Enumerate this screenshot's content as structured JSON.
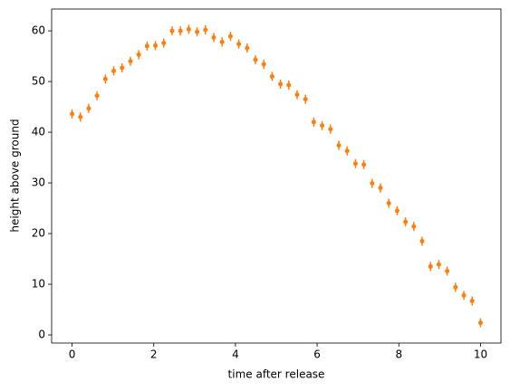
{
  "chart_data": {
    "type": "errorbar",
    "xlabel": "time after release",
    "ylabel": "height above ground",
    "x": [
      0,
      0.204,
      0.408,
      0.612,
      0.816,
      1.02,
      1.224,
      1.429,
      1.633,
      1.837,
      2.041,
      2.245,
      2.449,
      2.653,
      2.857,
      3.061,
      3.265,
      3.469,
      3.673,
      3.878,
      4.082,
      4.286,
      4.49,
      4.694,
      4.898,
      5.102,
      5.306,
      5.51,
      5.714,
      5.918,
      6.122,
      6.327,
      6.531,
      6.735,
      6.939,
      7.143,
      7.347,
      7.551,
      7.755,
      7.959,
      8.163,
      8.367,
      8.571,
      8.776,
      8.98,
      9.184,
      9.388,
      9.592,
      9.796,
      10
    ],
    "values": [
      43.6,
      43.0,
      44.7,
      47.2,
      50.5,
      52.1,
      52.7,
      54.0,
      55.3,
      57.0,
      57.1,
      57.6,
      60.0,
      60.0,
      60.3,
      59.8,
      60.2,
      58.7,
      57.8,
      58.9,
      57.4,
      56.6,
      54.3,
      53.4,
      51.0,
      49.5,
      49.3,
      47.4,
      46.5,
      42.0,
      41.3,
      40.6,
      37.4,
      36.3,
      33.8,
      33.6,
      29.9,
      29.0,
      26.0,
      24.5,
      22.3,
      21.4,
      18.5,
      13.5,
      13.9,
      12.6,
      9.4,
      7.8,
      6.7,
      2.4
    ],
    "yerr": 0.9,
    "color": "#ff7f0e",
    "xlim": [
      -0.5,
      10.5
    ],
    "ylim": [
      -1.6,
      64.3
    ],
    "xticks": [
      0,
      2,
      4,
      6,
      8,
      10
    ],
    "yticks": [
      0,
      10,
      20,
      30,
      40,
      50,
      60
    ]
  }
}
